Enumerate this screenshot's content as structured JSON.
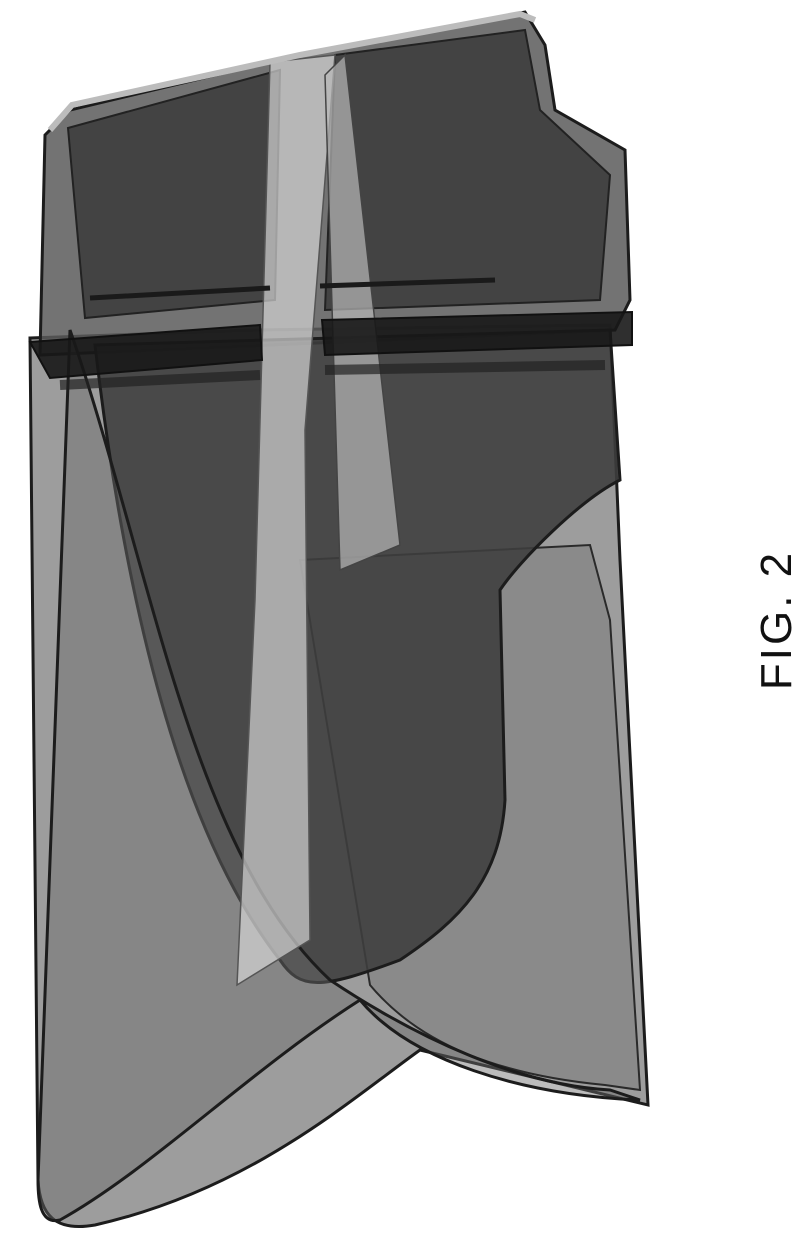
{
  "figure": {
    "label": "FIG. 2"
  },
  "colors": {
    "background": "#ffffff",
    "outline": "#1c1c1c",
    "light_panel": "#8c8c8c",
    "mid_panel": "#6a6a6a",
    "dark_panel": "#3e3e3e",
    "band": "#181818",
    "highlight": "#d4d4d4"
  }
}
